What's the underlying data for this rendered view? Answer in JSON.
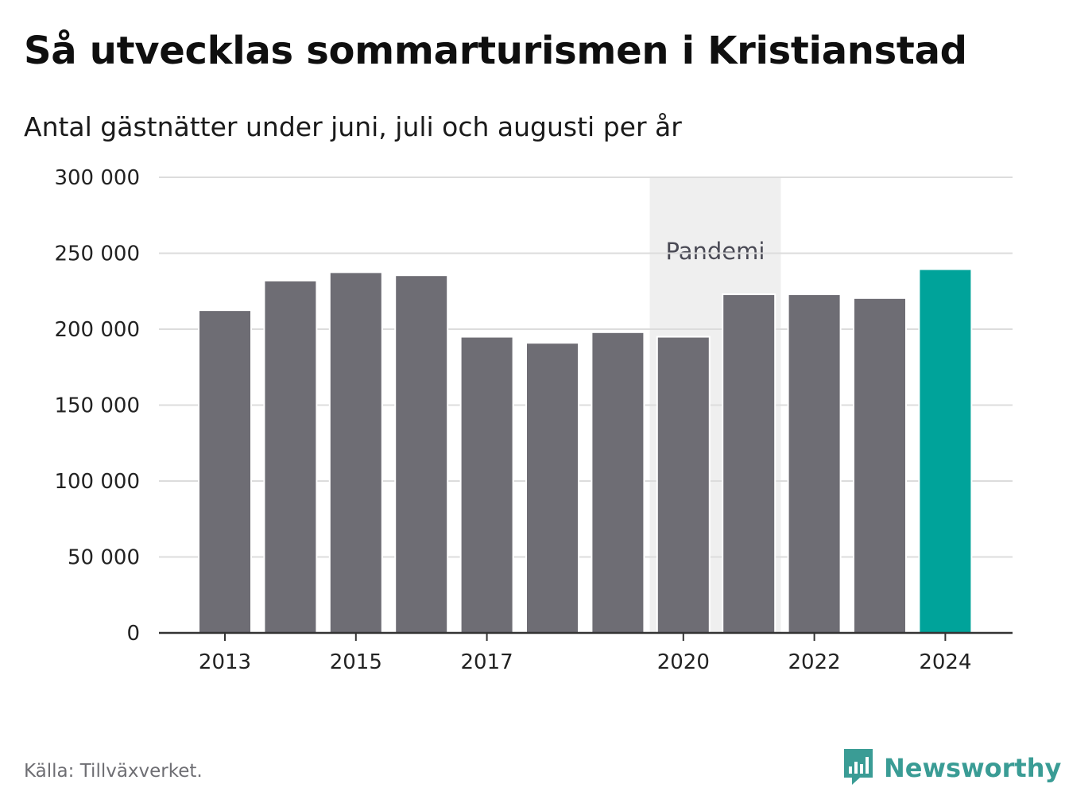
{
  "header": {
    "title": "Så utvecklas sommarturismen i Kristianstad",
    "subtitle": "Antal gästnätter under juni, juli och augusti per år"
  },
  "footer": {
    "source": "Källa: Tillväxverket.",
    "brand": "Newsworthy"
  },
  "colors": {
    "bar": "#6e6d74",
    "highlight": "#00a39a",
    "band": "#efefef",
    "grid": "#dcdcdc",
    "axis": "#333333",
    "brand": "#3a9c95"
  },
  "chart_data": {
    "type": "bar",
    "title": "Så utvecklas sommarturismen i Kristianstad",
    "subtitle": "Antal gästnätter under juni, juli och augusti per år",
    "categories": [
      2013,
      2014,
      2015,
      2016,
      2017,
      2018,
      2019,
      2020,
      2021,
      2022,
      2023,
      2024
    ],
    "values": [
      212500,
      232000,
      237500,
      235500,
      195000,
      191000,
      198000,
      195000,
      223000,
      223000,
      220500,
      239500
    ],
    "highlight_category": 2024,
    "x_tick_labels": [
      "2013",
      "2015",
      "2017",
      "2020",
      "2022",
      "2024"
    ],
    "y_ticks": [
      0,
      50000,
      100000,
      150000,
      200000,
      250000,
      300000
    ],
    "y_tick_labels": [
      "0",
      "50 000",
      "100 000",
      "150 000",
      "200 000",
      "250 000",
      "300 000"
    ],
    "ylim": [
      0,
      300000
    ],
    "grid": true,
    "legend": "none",
    "annotation": {
      "label": "Pandemi",
      "from": 2020,
      "to": 2021
    }
  }
}
